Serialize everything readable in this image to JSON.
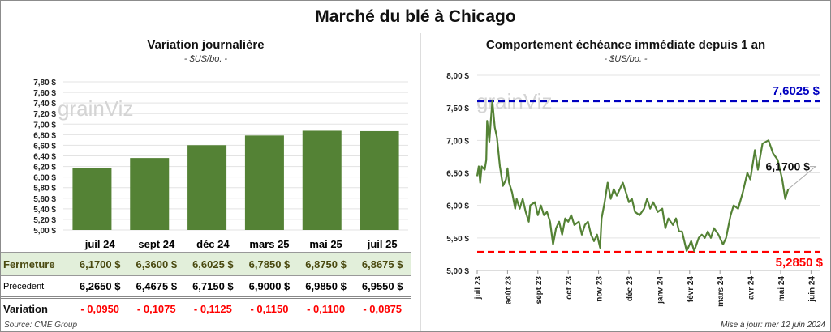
{
  "title": "Marché du blé à Chicago",
  "watermark": "grainViz",
  "chart_data": [
    {
      "type": "bar",
      "title": "Variation journalière",
      "unit": "- $US/bo. -",
      "categories": [
        "juil 24",
        "sept 24",
        "déc 24",
        "mars 25",
        "mai 25",
        "juil 25"
      ],
      "values": [
        6.17,
        6.36,
        6.6025,
        6.785,
        6.875,
        6.8675
      ],
      "ylim": [
        5.0,
        7.8
      ],
      "yticks": [
        "5,00 $",
        "5,20 $",
        "5,40 $",
        "5,60 $",
        "5,80 $",
        "6,00 $",
        "6,20 $",
        "6,40 $",
        "6,60 $",
        "6,80 $",
        "7,00 $",
        "7,20 $",
        "7,40 $",
        "7,60 $",
        "7,80 $"
      ],
      "bar_color": "#548235",
      "grid": true
    },
    {
      "type": "line",
      "title": "Comportement  échéance immédiate depuis 1 an",
      "unit": "- $US/bo. -",
      "ylim": [
        5.0,
        8.0
      ],
      "yticks": [
        "5,00 $",
        "5,50 $",
        "6,00 $",
        "6,50 $",
        "7,00 $",
        "7,50 $",
        "8,00 $"
      ],
      "xticks": [
        "juil 23",
        "août 23",
        "sept 23",
        "oct 23",
        "nov 23",
        "déc 23",
        "janv 24",
        "févr 24",
        "mars 24",
        "avr 24",
        "mai 24",
        "juin 24"
      ],
      "x_unit": "months since juil 23",
      "x": [
        0,
        0.05,
        0.1,
        0.15,
        0.25,
        0.3,
        0.33,
        0.4,
        0.45,
        0.5,
        0.58,
        0.65,
        0.75,
        0.85,
        0.95,
        1.0,
        1.05,
        1.15,
        1.25,
        1.3,
        1.4,
        1.5,
        1.6,
        1.7,
        1.75,
        1.9,
        2.0,
        2.1,
        2.2,
        2.3,
        2.4,
        2.5,
        2.6,
        2.7,
        2.8,
        2.9,
        3.0,
        3.1,
        3.2,
        3.35,
        3.45,
        3.55,
        3.65,
        3.75,
        3.85,
        3.95,
        4.05,
        4.1,
        4.2,
        4.3,
        4.4,
        4.5,
        4.6,
        4.7,
        4.8,
        4.9,
        5.0,
        5.1,
        5.2,
        5.35,
        5.5,
        5.6,
        5.7,
        5.8,
        5.95,
        6.1,
        6.2,
        6.3,
        6.45,
        6.55,
        6.65,
        6.75,
        6.9,
        7.05,
        7.15,
        7.3,
        7.4,
        7.5,
        7.6,
        7.7,
        7.8,
        7.95,
        8.1,
        8.2,
        8.35,
        8.45,
        8.6,
        8.75,
        8.9,
        9.0,
        9.15,
        9.25,
        9.4,
        9.6,
        9.75,
        9.9,
        10.05,
        10.15,
        10.25
      ],
      "y": [
        6.45,
        6.6,
        6.35,
        6.6,
        6.55,
        6.7,
        7.3,
        6.98,
        7.3,
        7.6,
        7.2,
        7.05,
        6.6,
        6.3,
        6.4,
        6.57,
        6.35,
        6.2,
        5.95,
        6.1,
        5.95,
        6.1,
        5.9,
        5.75,
        6.0,
        6.05,
        5.85,
        6.0,
        5.85,
        5.9,
        5.75,
        5.4,
        5.65,
        5.75,
        5.55,
        5.8,
        5.75,
        5.85,
        5.7,
        5.75,
        5.55,
        5.7,
        5.75,
        5.55,
        5.45,
        5.55,
        5.35,
        5.8,
        6.05,
        6.35,
        6.1,
        6.25,
        6.15,
        6.25,
        6.35,
        6.2,
        6.05,
        6.1,
        5.9,
        5.85,
        5.95,
        6.1,
        5.95,
        6.05,
        5.9,
        5.95,
        5.65,
        5.8,
        5.7,
        5.8,
        5.6,
        5.6,
        5.3,
        5.45,
        5.3,
        5.5,
        5.55,
        5.5,
        5.6,
        5.5,
        5.65,
        5.55,
        5.4,
        5.5,
        5.85,
        6.0,
        5.95,
        6.2,
        6.5,
        6.4,
        6.85,
        6.55,
        6.95,
        7.0,
        6.8,
        6.7,
        6.4,
        6.1,
        6.25
      ],
      "line_color": "#548235",
      "max_value": 7.6025,
      "max_label": "7,6025 $",
      "max_color": "#0000c0",
      "min_value": 5.285,
      "min_label": "5,2850 $",
      "min_color": "#ff0000",
      "last_label": "6,1700 $",
      "grid": true
    }
  ],
  "table": {
    "headers": [
      "juil 24",
      "sept 24",
      "déc 24",
      "mars 25",
      "mai 25",
      "juil 25"
    ],
    "rows": [
      {
        "label": "Fermeture",
        "values": [
          "6,1700  $",
          "6,3600  $",
          "6,6025  $",
          "6,7850  $",
          "6,8750  $",
          "6,8675  $"
        ]
      },
      {
        "label": "Précédent",
        "values": [
          "6,2650  $",
          "6,4675  $",
          "6,7150  $",
          "6,9000  $",
          "6,9850  $",
          "6,9550  $"
        ]
      },
      {
        "label": "Variation",
        "values": [
          "- 0,0950",
          "- 0,1075",
          "- 0,1125",
          "- 0,1150",
          "- 0,1100",
          "- 0,0875"
        ]
      }
    ]
  },
  "source": "Source: CME Group",
  "updated": "Mise à jour: mer 12 juin 2024"
}
